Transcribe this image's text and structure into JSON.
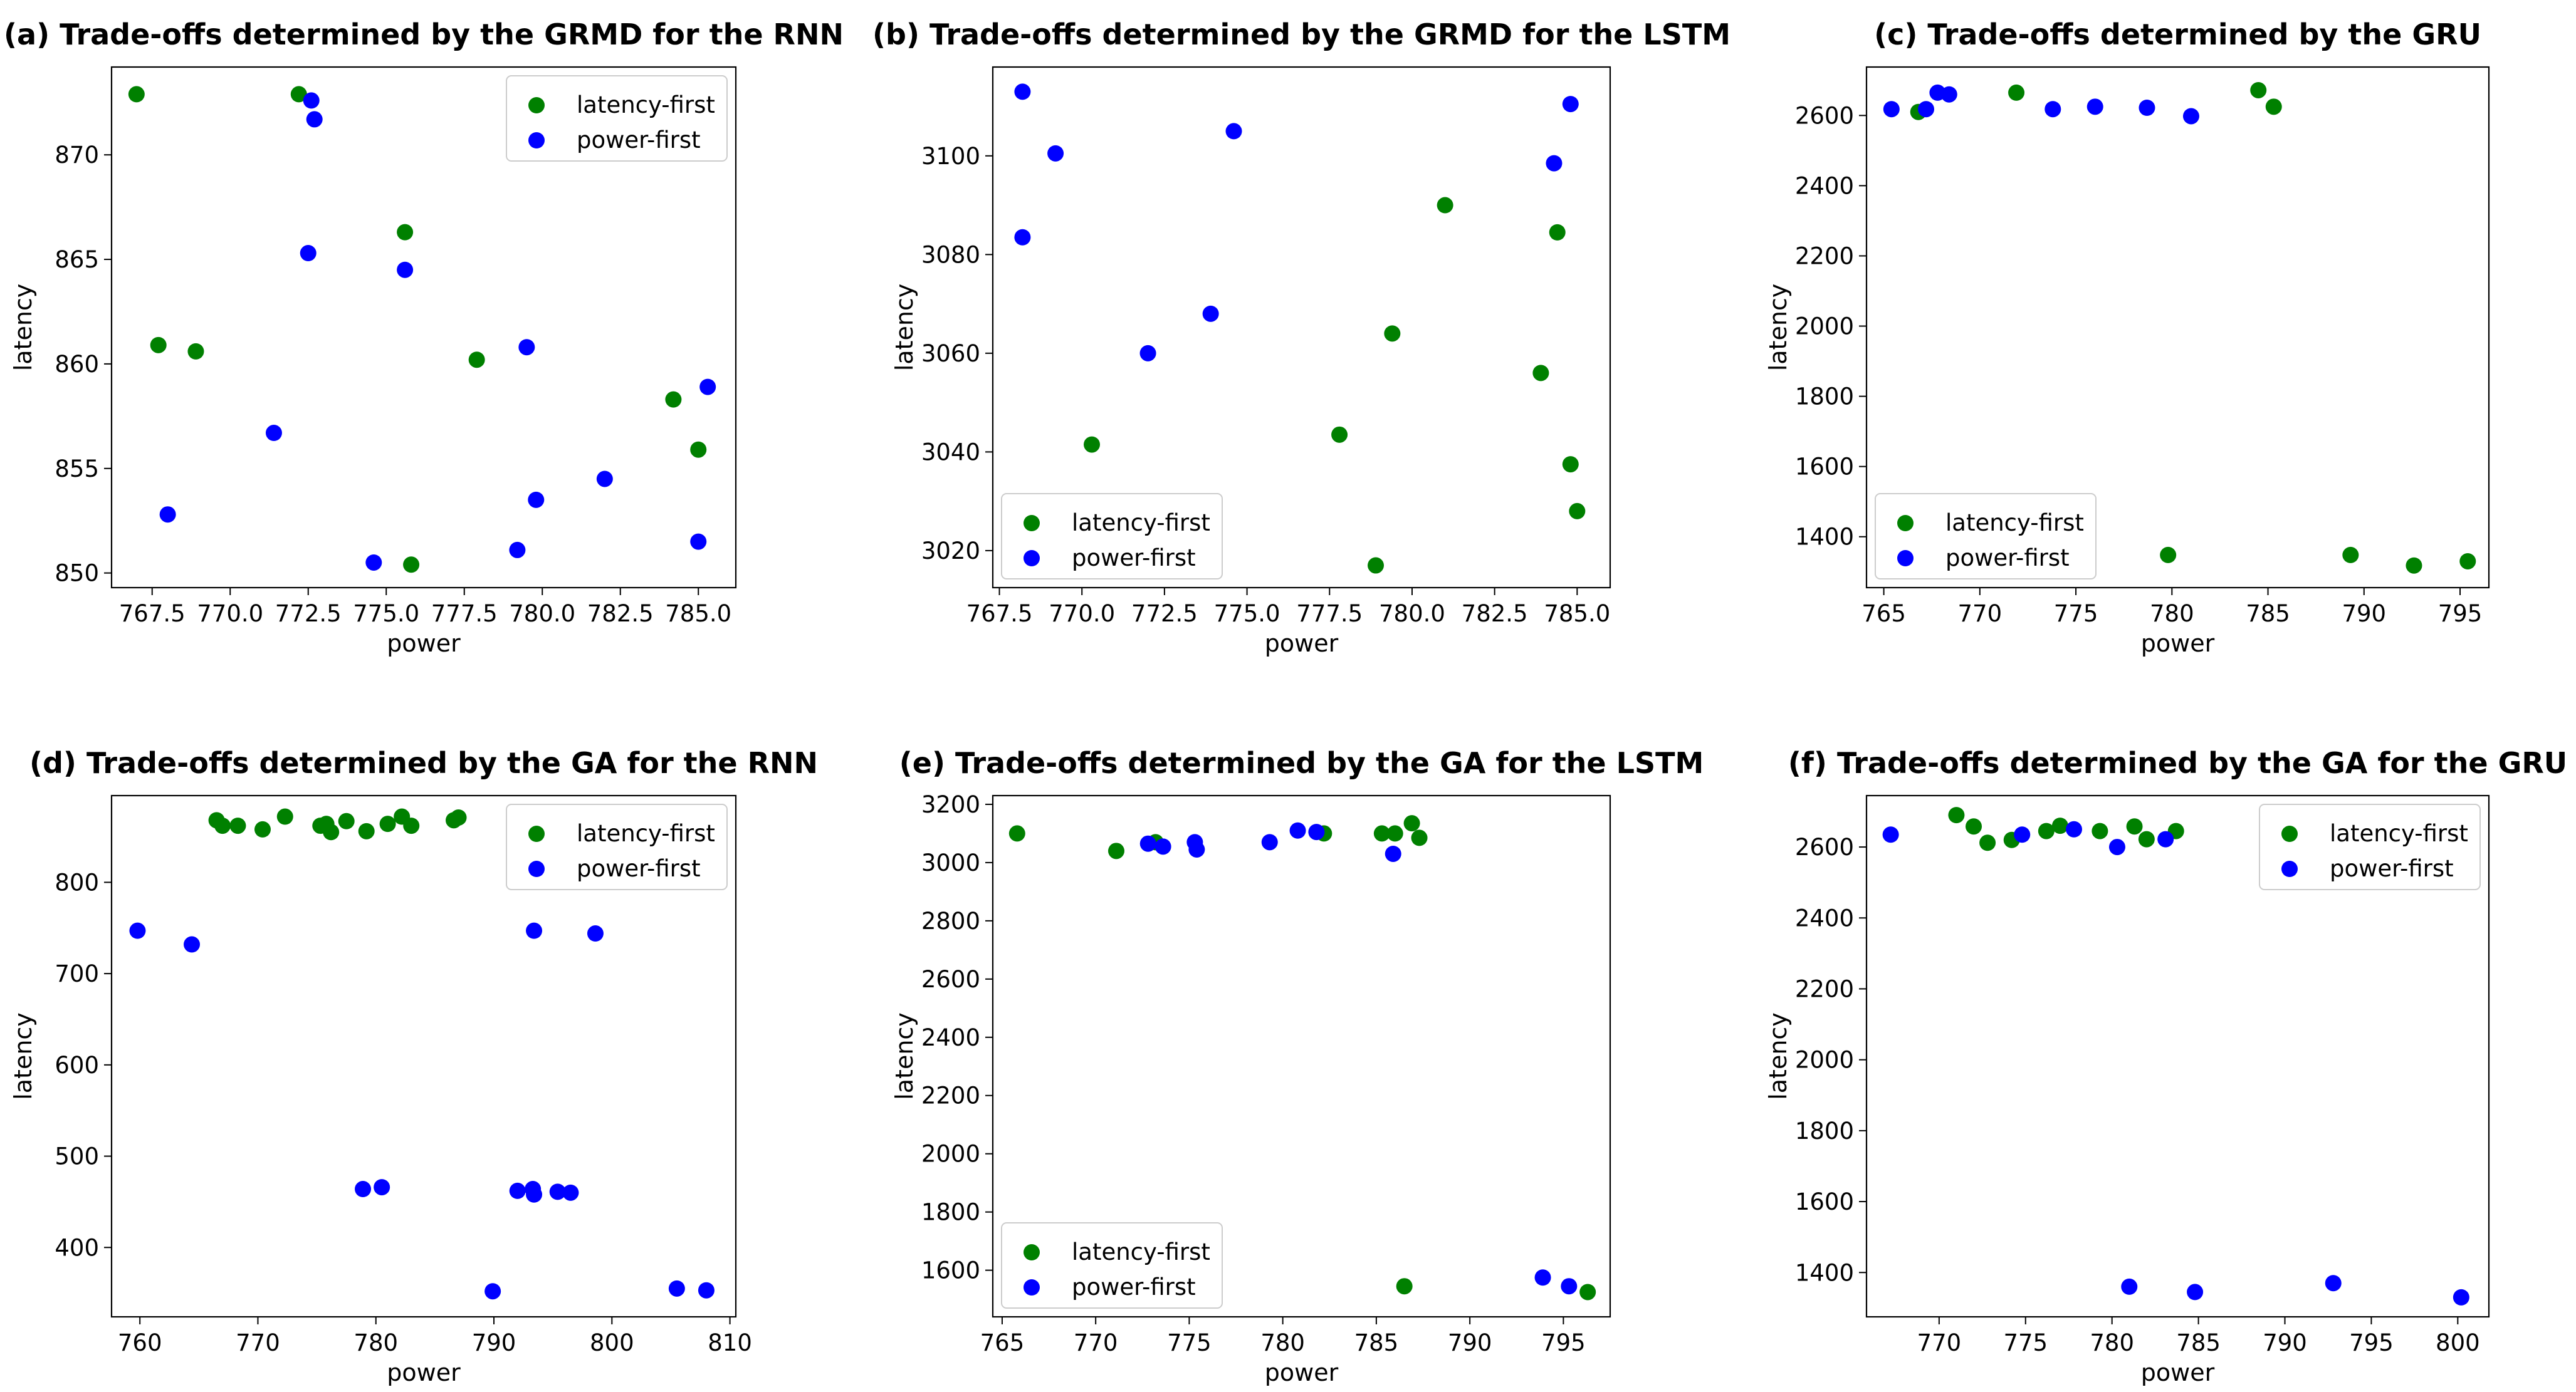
{
  "figure": {
    "layout": "2 rows x 3 columns",
    "background": "#ffffff"
  },
  "colors": {
    "latency_first": "#008000",
    "power_first": "#0000ff"
  },
  "chart_data": [
    {
      "type": "scatter",
      "title": "(a) Trade-offs determined by the GRMD for the RNN",
      "xlabel": "power",
      "ylabel": "latency",
      "xlim": [
        766.2,
        786.2
      ],
      "ylim": [
        849.3,
        874.2
      ],
      "xticks": [
        767.5,
        770.0,
        772.5,
        775.0,
        777.5,
        780.0,
        782.5,
        785.0
      ],
      "yticks": [
        850,
        855,
        860,
        865,
        870
      ],
      "tick_decimals": 1,
      "legend": "upper right",
      "series": [
        {
          "name": "latency-first",
          "color": "#008000",
          "x": [
            767.0,
            767.7,
            768.9,
            772.2,
            775.6,
            775.8,
            777.9,
            784.2,
            785.0
          ],
          "y": [
            872.9,
            860.9,
            860.6,
            872.9,
            866.3,
            850.4,
            860.2,
            858.3,
            855.9
          ]
        },
        {
          "name": "power-first",
          "color": "#0000ff",
          "x": [
            768.0,
            771.4,
            772.5,
            772.6,
            772.7,
            774.6,
            775.6,
            779.2,
            779.5,
            779.8,
            782.0,
            785.0,
            785.3
          ],
          "y": [
            852.8,
            856.7,
            865.3,
            872.6,
            871.7,
            850.5,
            864.5,
            851.1,
            860.8,
            853.5,
            854.5,
            851.5,
            858.9
          ]
        }
      ]
    },
    {
      "type": "scatter",
      "title": "(b) Trade-offs determined by the GRMD for the LSTM",
      "xlabel": "power",
      "ylabel": "latency",
      "xlim": [
        767.3,
        786.0
      ],
      "ylim": [
        3012.5,
        3118.0
      ],
      "xticks": [
        767.5,
        770.0,
        772.5,
        775.0,
        777.5,
        780.0,
        782.5,
        785.0
      ],
      "yticks": [
        3020,
        3040,
        3060,
        3080,
        3100
      ],
      "tick_decimals": 1,
      "legend": "lower left",
      "series": [
        {
          "name": "latency-first",
          "color": "#008000",
          "x": [
            770.3,
            777.8,
            778.9,
            779.4,
            781.0,
            783.9,
            784.4,
            784.8,
            785.0
          ],
          "y": [
            3041.5,
            3043.5,
            3017.0,
            3064.0,
            3090.0,
            3056.0,
            3084.5,
            3037.5,
            3028.0
          ]
        },
        {
          "name": "power-first",
          "color": "#0000ff",
          "x": [
            768.2,
            768.2,
            769.2,
            772.0,
            773.9,
            774.6,
            784.3,
            784.8
          ],
          "y": [
            3113.0,
            3083.5,
            3100.5,
            3060.0,
            3068.0,
            3105.0,
            3098.5,
            3110.5
          ]
        }
      ]
    },
    {
      "type": "scatter",
      "title": "(c) Trade-offs determined by the GRU",
      "xlabel": "power",
      "ylabel": "latency",
      "xlim": [
        764.1,
        796.5
      ],
      "ylim": [
        1255,
        2738
      ],
      "xticks": [
        765,
        770,
        775,
        780,
        785,
        790,
        795
      ],
      "yticks": [
        1400,
        1600,
        1800,
        2000,
        2200,
        2400,
        2600
      ],
      "tick_decimals": 0,
      "legend": "lower left",
      "series": [
        {
          "name": "latency-first",
          "color": "#008000",
          "x": [
            766.8,
            771.9,
            779.8,
            784.5,
            785.3,
            789.3,
            792.6,
            795.4
          ],
          "y": [
            2610,
            2665,
            1348,
            2672,
            2625,
            1348,
            1318,
            1330
          ]
        },
        {
          "name": "power-first",
          "color": "#0000ff",
          "x": [
            765.4,
            767.2,
            767.8,
            768.4,
            773.8,
            776.0,
            778.7,
            781.0
          ],
          "y": [
            2618,
            2618,
            2665,
            2660,
            2618,
            2625,
            2622,
            2598
          ]
        }
      ]
    },
    {
      "type": "scatter",
      "title": "(d) Trade-offs determined by the GA for the RNN",
      "xlabel": "power",
      "ylabel": "latency",
      "xlim": [
        757.6,
        810.5
      ],
      "ylim": [
        324,
        895
      ],
      "xticks": [
        760,
        770,
        780,
        790,
        800,
        810
      ],
      "yticks": [
        400,
        500,
        600,
        700,
        800
      ],
      "tick_decimals": 0,
      "legend": "upper right",
      "series": [
        {
          "name": "latency-first",
          "color": "#008000",
          "x": [
            766.5,
            767.0,
            768.3,
            770.4,
            772.3,
            775.3,
            775.8,
            776.2,
            777.5,
            779.2,
            781.0,
            782.2,
            783.0,
            786.6,
            787.0
          ],
          "y": [
            868,
            862,
            862,
            858,
            872,
            862,
            864,
            855,
            867,
            856,
            864,
            872,
            862,
            868,
            871
          ]
        },
        {
          "name": "power-first",
          "color": "#0000ff",
          "x": [
            759.8,
            764.4,
            778.9,
            780.5,
            789.9,
            792.0,
            793.3,
            793.4,
            793.4,
            795.4,
            796.5,
            798.6,
            805.5,
            808.0
          ],
          "y": [
            747,
            732,
            464,
            466,
            352,
            462,
            464,
            747,
            458,
            461,
            460,
            744,
            355,
            353
          ]
        }
      ]
    },
    {
      "type": "scatter",
      "title": "(e) Trade-offs determined by the GA for the LSTM",
      "xlabel": "power",
      "ylabel": "latency",
      "xlim": [
        764.5,
        797.5
      ],
      "ylim": [
        1440,
        3230
      ],
      "xticks": [
        765,
        770,
        775,
        780,
        785,
        790,
        795
      ],
      "yticks": [
        1600,
        1800,
        2000,
        2200,
        2400,
        2600,
        2800,
        3000,
        3200
      ],
      "tick_decimals": 0,
      "legend": "lower left",
      "series": [
        {
          "name": "latency-first",
          "color": "#008000",
          "x": [
            765.8,
            771.1,
            773.2,
            782.2,
            785.3,
            786.0,
            786.5,
            786.9,
            787.3,
            796.3
          ],
          "y": [
            3100,
            3040,
            3070,
            3100,
            3100,
            3100,
            1545,
            3135,
            3085,
            1525
          ]
        },
        {
          "name": "power-first",
          "color": "#0000ff",
          "x": [
            772.8,
            773.6,
            775.3,
            775.4,
            779.3,
            780.8,
            781.8,
            785.9,
            793.9,
            795.3
          ],
          "y": [
            3065,
            3055,
            3070,
            3045,
            3070,
            3110,
            3105,
            3030,
            1575,
            1545
          ]
        }
      ]
    },
    {
      "type": "scatter",
      "title": "(f) Trade-offs determined by the GA for the GRU",
      "xlabel": "power",
      "ylabel": "latency",
      "xlim": [
        765.8,
        801.8
      ],
      "ylim": [
        1275,
        2745
      ],
      "xticks": [
        770,
        775,
        780,
        785,
        790,
        795,
        800
      ],
      "yticks": [
        1400,
        1600,
        1800,
        2000,
        2200,
        2400,
        2600
      ],
      "tick_decimals": 0,
      "legend": "upper right",
      "series": [
        {
          "name": "latency-first",
          "color": "#008000",
          "x": [
            771.0,
            772.0,
            772.8,
            774.2,
            776.2,
            777.0,
            779.3,
            781.3,
            782.0,
            783.7
          ],
          "y": [
            2690,
            2658,
            2612,
            2620,
            2645,
            2660,
            2645,
            2658,
            2622,
            2645
          ]
        },
        {
          "name": "power-first",
          "color": "#0000ff",
          "x": [
            767.2,
            774.8,
            777.8,
            780.3,
            781.0,
            783.1,
            784.8,
            792.8,
            800.2
          ],
          "y": [
            2635,
            2635,
            2650,
            2600,
            1360,
            2622,
            1345,
            1370,
            1330
          ]
        }
      ]
    }
  ]
}
